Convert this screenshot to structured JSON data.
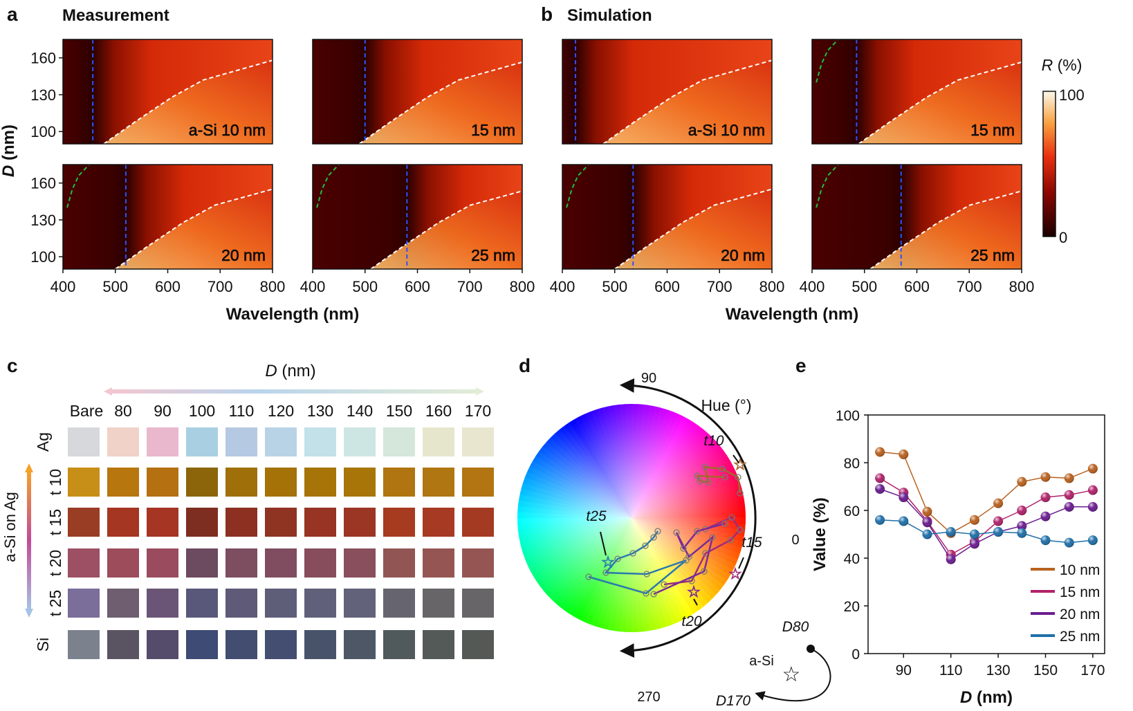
{
  "panel_letters": [
    "a",
    "b",
    "c",
    "d",
    "e"
  ],
  "panel_a": {
    "title": "Measurement",
    "plots": [
      {
        "label": "a-Si 10 nm",
        "thickness": 10,
        "blue_line_nm": 457,
        "green_line": false
      },
      {
        "label": "15 nm",
        "thickness": 15,
        "blue_line_nm": 500,
        "green_line": false
      },
      {
        "label": "20 nm",
        "thickness": 20,
        "blue_line_nm": 520,
        "green_line": true
      },
      {
        "label": "25 nm",
        "thickness": 25,
        "blue_line_nm": 580,
        "green_line": true
      }
    ]
  },
  "panel_b": {
    "title": "Simulation",
    "plots": [
      {
        "label": "a-Si 10 nm",
        "thickness": 10,
        "blue_line_nm": 425,
        "green_line": false
      },
      {
        "label": "15 nm",
        "thickness": 15,
        "blue_line_nm": 485,
        "green_line": true
      },
      {
        "label": "20 nm",
        "thickness": 20,
        "blue_line_nm": 535,
        "green_line": true
      },
      {
        "label": "25 nm",
        "thickness": 25,
        "blue_line_nm": 570,
        "green_line": true
      }
    ]
  },
  "heatmap_axes": {
    "xlabel": "Wavelength (nm)",
    "ylabel": "D (nm)",
    "ylabel_var": "D",
    "ylabel_unit": " (nm)",
    "xticks": [
      "400",
      "500",
      "600",
      "700",
      "800"
    ],
    "yticks": [
      "100",
      "130",
      "160"
    ],
    "xrange": [
      400,
      800
    ],
    "yrange": [
      90,
      175
    ]
  },
  "colorbar": {
    "title_var": "R",
    "title_unit": " (%)",
    "max": "100",
    "min": "0"
  },
  "panel_c": {
    "axis_title_var": "D",
    "axis_title_unit": " (nm)",
    "columns": [
      "Bare",
      "80",
      "90",
      "100",
      "110",
      "120",
      "130",
      "140",
      "150",
      "160",
      "170"
    ],
    "rows": [
      "Ag",
      "t 10",
      "t 15",
      "t 20",
      "t 25",
      "Si"
    ],
    "side_label": "a-Si on Ag",
    "colors": [
      [
        "#d7d8dc",
        "#f0d2c8",
        "#eab8cd",
        "#a9d0e2",
        "#b6c9e3",
        "#b8d3e6",
        "#c3e1e9",
        "#cde6e4",
        "#d5e6da",
        "#e6e6cc",
        "#e8e6cf"
      ],
      [
        "#c78f17",
        "#b8760f",
        "#b57012",
        "#8c650b",
        "#9f700a",
        "#a57208",
        "#a77408",
        "#a87508",
        "#b07510",
        "#b07612",
        "#b27512"
      ],
      [
        "#9a3d25",
        "#a53622",
        "#a63524",
        "#7e2e20",
        "#8d3022",
        "#8f3323",
        "#973423",
        "#9c3624",
        "#a73b20",
        "#a73a22",
        "#a53a22"
      ],
      [
        "#9d4f63",
        "#9d4c5c",
        "#9a4b5e",
        "#6c4a60",
        "#7d4d60",
        "#7f4c60",
        "#874d5d",
        "#8a4f5c",
        "#915654",
        "#955653",
        "#955653"
      ],
      [
        "#7b6e9a",
        "#6e5e6f",
        "#6b5576",
        "#59587a",
        "#5e5a78",
        "#5e5e79",
        "#60607a",
        "#62627a",
        "#66656f",
        "#686569",
        "#686568"
      ],
      [
        "#7b828e",
        "#5a5462",
        "#554b6a",
        "#3e4b74",
        "#434d70",
        "#434e70",
        "#48536a",
        "#4d5765",
        "#505a5c",
        "#535a58",
        "#555955"
      ]
    ]
  },
  "panel_d": {
    "hue_label": "Hue (°)",
    "angle_labels": [
      "90",
      "0",
      "270"
    ],
    "series": [
      {
        "name": "t10",
        "color": "#a8662c"
      },
      {
        "name": "t15",
        "color": "#a02c7a"
      },
      {
        "name": "t20",
        "color": "#7a2a9a"
      },
      {
        "name": "t25",
        "color": "#2a78b0"
      }
    ],
    "legend_start": "D80",
    "legend_mid": "a-Si",
    "legend_end": "D170"
  },
  "chart_data": {
    "type": "line",
    "title": "",
    "xlabel": "D (nm)",
    "xlabel_var": "D",
    "xlabel_unit": " (nm)",
    "ylabel": "Value (%)",
    "x": [
      80,
      90,
      100,
      110,
      120,
      130,
      140,
      150,
      160,
      170
    ],
    "xticks": [
      90,
      110,
      130,
      150,
      170
    ],
    "yticks": [
      0,
      20,
      40,
      60,
      80,
      100
    ],
    "xlim": [
      75,
      175
    ],
    "ylim": [
      0,
      100
    ],
    "legend_position": "bottom-right",
    "series": [
      {
        "name": "10 nm",
        "color": "#b8611f",
        "values": [
          84.5,
          83.5,
          59.5,
          50.5,
          56,
          63,
          72,
          74,
          73.5,
          77.5
        ]
      },
      {
        "name": "15 nm",
        "color": "#b0226a",
        "values": [
          73.5,
          67.5,
          55.5,
          41.5,
          47,
          55.5,
          60,
          65.5,
          66.5,
          68.5
        ]
      },
      {
        "name": "20 nm",
        "color": "#6a1d8f",
        "values": [
          69,
          65.5,
          55,
          39.5,
          46,
          51,
          53.5,
          57.5,
          61.5,
          61.5
        ]
      },
      {
        "name": "25 nm",
        "color": "#1f6fa8",
        "values": [
          56,
          55.5,
          50,
          51,
          50,
          51,
          50.5,
          47.5,
          46.5,
          47.5
        ]
      }
    ]
  }
}
